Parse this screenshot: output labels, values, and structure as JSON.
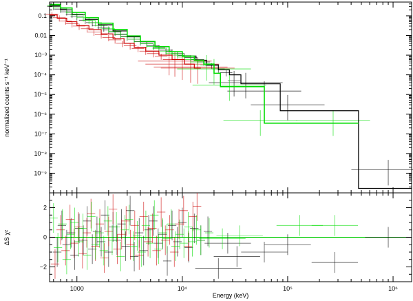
{
  "chart_data": [
    {
      "type": "line",
      "panel": "spectrum",
      "xlabel": "Energy (keV)",
      "ylabel": "normalized counts s⁻¹ keV⁻¹",
      "xscale": "log",
      "yscale": "log",
      "xlim": [
        550,
        1500000
      ],
      "ylim": [
        1e-10,
        0.5
      ],
      "grid": false,
      "xticks": [
        {
          "value": 1000,
          "label": "1000"
        },
        {
          "value": 10000,
          "label": "10⁴"
        },
        {
          "value": 100000,
          "label": "10⁵"
        },
        {
          "value": 1000000,
          "label": "10⁶"
        }
      ],
      "yticks": [
        {
          "value": 0.1,
          "label": "0.1"
        },
        {
          "value": 0.01,
          "label": "0.01"
        },
        {
          "value": 0.001,
          "label": "10⁻³"
        },
        {
          "value": 0.0001,
          "label": "10⁻⁴"
        },
        {
          "value": 1e-05,
          "label": "10⁻⁵"
        },
        {
          "value": 1e-06,
          "label": "10⁻⁶"
        },
        {
          "value": 1e-07,
          "label": "10⁻⁷"
        },
        {
          "value": 1e-08,
          "label": "10⁻⁸"
        },
        {
          "value": 1e-09,
          "label": "10⁻⁹"
        }
      ],
      "series": [
        {
          "color": "#000000",
          "model_steps": [
            [
              550,
              0.32
            ],
            [
              700,
              0.2
            ],
            [
              900,
              0.12
            ],
            [
              1200,
              0.065
            ],
            [
              1600,
              0.035
            ],
            [
              2200,
              0.017
            ],
            [
              3000,
              0.0085
            ],
            [
              4000,
              0.0048
            ],
            [
              5500,
              0.0027
            ],
            [
              7500,
              0.0015
            ],
            [
              10000,
              0.0009
            ],
            [
              13500,
              0.00055
            ],
            [
              17000,
              0.00032
            ],
            [
              22000,
              0.00018
            ],
            [
              28000,
              0.0001
            ],
            [
              36000,
              3.5e-05
            ],
            [
              85000,
              1.5e-06
            ],
            [
              470000,
              1.7e-10
            ],
            [
              1500000,
              1.7e-10
            ]
          ],
          "points": [
            [
              600,
              0.3
            ],
            [
              700,
              0.22
            ],
            [
              800,
              0.16
            ],
            [
              900,
              0.12
            ],
            [
              1000,
              0.09
            ],
            [
              1200,
              0.06
            ],
            [
              1400,
              0.045
            ],
            [
              1600,
              0.032
            ],
            [
              1800,
              0.024
            ],
            [
              2000,
              0.019
            ],
            [
              2300,
              0.015
            ],
            [
              2600,
              0.011
            ],
            [
              3000,
              0.0085
            ],
            [
              3500,
              0.0065
            ],
            [
              4000,
              0.0048
            ],
            [
              4600,
              0.0038
            ],
            [
              5300,
              0.003
            ],
            [
              6000,
              0.0024
            ],
            [
              7000,
              0.0018
            ],
            [
              8000,
              0.0015
            ],
            [
              9000,
              0.0012
            ],
            [
              10500,
              0.00095
            ],
            [
              12000,
              0.00075
            ],
            [
              14000,
              0.0006
            ],
            [
              16000,
              0.00045
            ],
            [
              19000,
              0.0003
            ],
            [
              22000,
              0.0002
            ],
            [
              26000,
              0.00013
            ],
            [
              31000,
              5e-05
            ],
            [
              40000,
              4e-05
            ],
            [
              60000,
              1.5e-05
            ],
            [
              100000,
              3e-06
            ],
            [
              900000,
              1.5e-09
            ]
          ],
          "residuals": [
            [
              650,
              -1.0
            ],
            [
              720,
              0.8
            ],
            [
              800,
              -0.5
            ],
            [
              880,
              0.3
            ],
            [
              950,
              -1.2
            ],
            [
              1050,
              0.6
            ],
            [
              1150,
              -0.2
            ],
            [
              1250,
              1.1
            ],
            [
              1400,
              -0.8
            ],
            [
              1550,
              0.4
            ],
            [
              1700,
              -0.3
            ],
            [
              1850,
              1.5
            ],
            [
              2000,
              -1.0
            ],
            [
              2200,
              0.7
            ],
            [
              2400,
              -0.2
            ],
            [
              2650,
              0.9
            ],
            [
              2900,
              -0.6
            ],
            [
              3200,
              1.8
            ],
            [
              3500,
              -1.3
            ],
            [
              3900,
              0.3
            ],
            [
              4300,
              -0.9
            ],
            [
              4800,
              0.5
            ],
            [
              5300,
              1.1
            ],
            [
              5900,
              -0.4
            ],
            [
              6500,
              0.2
            ],
            [
              7200,
              -1.6
            ],
            [
              8000,
              0.8
            ],
            [
              9000,
              -0.3
            ],
            [
              10000,
              1.0
            ],
            [
              11500,
              -0.7
            ],
            [
              13000,
              0.6
            ],
            [
              15000,
              -0.2
            ],
            [
              17500,
              0.4
            ],
            [
              22000,
              -2.1
            ],
            [
              27000,
              -0.4
            ],
            [
              33000,
              -1.3
            ],
            [
              60000,
              -1.0
            ],
            [
              100000,
              -0.5
            ],
            [
              280000,
              -1.7
            ],
            [
              900000,
              0.0
            ]
          ]
        },
        {
          "color": "#cc0000",
          "model_steps": [
            [
              550,
              0.11
            ],
            [
              650,
              0.075
            ],
            [
              800,
              0.05
            ],
            [
              1000,
              0.032
            ],
            [
              1300,
              0.02
            ],
            [
              1700,
              0.012
            ],
            [
              2200,
              0.007
            ],
            [
              2800,
              0.004
            ],
            [
              3500,
              0.0025
            ],
            [
              4500,
              0.0016
            ],
            [
              6000,
              0.001
            ],
            [
              8000,
              0.0006
            ],
            [
              10500,
              0.00035
            ],
            [
              13000,
              0.00022
            ],
            [
              15000,
              0.00022
            ]
          ],
          "points": [
            [
              580,
              0.12
            ],
            [
              680,
              0.08
            ],
            [
              780,
              0.055
            ],
            [
              900,
              0.04
            ],
            [
              1050,
              0.03
            ],
            [
              1250,
              0.022
            ],
            [
              1450,
              0.015
            ],
            [
              1700,
              0.011
            ],
            [
              2000,
              0.008
            ],
            [
              2300,
              0.006
            ],
            [
              2700,
              0.004
            ],
            [
              3200,
              0.003
            ],
            [
              3800,
              0.0022
            ],
            [
              4500,
              0.0016
            ],
            [
              5300,
              0.0012
            ],
            [
              6300,
              0.0009
            ],
            [
              7500,
              0.0006
            ],
            [
              8500,
              0.0005
            ],
            [
              10000,
              0.00035
            ],
            [
              12000,
              0.00025
            ],
            [
              14000,
              0.00022
            ]
          ],
          "residuals": [
            [
              620,
              -1.8
            ],
            [
              700,
              0.5
            ],
            [
              780,
              -0.9
            ],
            [
              860,
              1.2
            ],
            [
              940,
              -0.4
            ],
            [
              1030,
              0.7
            ],
            [
              1130,
              -1.1
            ],
            [
              1240,
              0.3
            ],
            [
              1360,
              1.6
            ],
            [
              1500,
              -0.6
            ],
            [
              1650,
              0.9
            ],
            [
              1820,
              -1.4
            ],
            [
              2000,
              0.4
            ],
            [
              2200,
              1.9
            ],
            [
              2420,
              -0.8
            ],
            [
              2660,
              0.2
            ],
            [
              2930,
              1.1
            ],
            [
              3220,
              -0.5
            ],
            [
              3540,
              0.8
            ],
            [
              3900,
              -1.2
            ],
            [
              4300,
              1.4
            ],
            [
              4730,
              -0.3
            ],
            [
              5200,
              0.6
            ],
            [
              5700,
              -0.9
            ],
            [
              6300,
              1.7
            ],
            [
              6900,
              -0.2
            ],
            [
              7600,
              0.5
            ],
            [
              8400,
              -1.0
            ],
            [
              9300,
              0.9
            ],
            [
              10300,
              1.8
            ],
            [
              11400,
              -0.6
            ],
            [
              12600,
              1.4
            ],
            [
              13800,
              2.1
            ]
          ]
        },
        {
          "color": "#00dd00",
          "model_steps": [
            [
              550,
              0.38
            ],
            [
              700,
              0.25
            ],
            [
              900,
              0.15
            ],
            [
              1200,
              0.08
            ],
            [
              1600,
              0.042
            ],
            [
              2200,
              0.02
            ],
            [
              3000,
              0.0095
            ],
            [
              4000,
              0.005
            ],
            [
              5500,
              0.0027
            ],
            [
              7500,
              0.0015
            ],
            [
              10000,
              0.0009
            ],
            [
              13000,
              0.00055
            ],
            [
              16000,
              0.00035
            ],
            [
              20000,
              0.00012
            ],
            [
              23000,
              2.5e-05
            ],
            [
              60000,
              3.5e-07
            ],
            [
              470000,
              3.5e-07
            ]
          ],
          "points": [
            [
              600,
              0.35
            ],
            [
              700,
              0.26
            ],
            [
              800,
              0.2
            ],
            [
              900,
              0.15
            ],
            [
              1000,
              0.11
            ],
            [
              1150,
              0.08
            ],
            [
              1300,
              0.06
            ],
            [
              1500,
              0.045
            ],
            [
              1700,
              0.032
            ],
            [
              2000,
              0.022
            ],
            [
              2300,
              0.016
            ],
            [
              2600,
              0.012
            ],
            [
              3000,
              0.009
            ],
            [
              3500,
              0.0065
            ],
            [
              4000,
              0.005
            ],
            [
              4600,
              0.0038
            ],
            [
              5300,
              0.0028
            ],
            [
              6000,
              0.0022
            ],
            [
              7000,
              0.0016
            ],
            [
              8000,
              0.0012
            ],
            [
              9000,
              0.001
            ],
            [
              10500,
              0.0008
            ],
            [
              12000,
              0.0006
            ],
            [
              14000,
              0.00045
            ],
            [
              17000,
              0.00032
            ],
            [
              20000,
              0.0002
            ],
            [
              28000,
              3e-05
            ],
            [
              55000,
              5e-07
            ],
            [
              270000,
              5e-07
            ]
          ],
          "residuals": [
            [
              600,
              1.3
            ],
            [
              660,
              -0.7
            ],
            [
              730,
              0.9
            ],
            [
              800,
              -1.5
            ],
            [
              870,
              0.2
            ],
            [
              950,
              1.0
            ],
            [
              1040,
              -0.3
            ],
            [
              1140,
              0.6
            ],
            [
              1250,
              -1.2
            ],
            [
              1370,
              1.4
            ],
            [
              1500,
              -0.5
            ],
            [
              1640,
              0.3
            ],
            [
              1800,
              -0.9
            ],
            [
              1970,
              1.1
            ],
            [
              2160,
              -0.2
            ],
            [
              2370,
              0.7
            ],
            [
              2600,
              -1.3
            ],
            [
              2850,
              0.5
            ],
            [
              3120,
              1.2
            ],
            [
              3420,
              -0.6
            ],
            [
              3750,
              0.1
            ],
            [
              4110,
              -1.0
            ],
            [
              4510,
              0.8
            ],
            [
              4950,
              -0.4
            ],
            [
              5430,
              1.5
            ],
            [
              5950,
              -0.8
            ],
            [
              6530,
              0.3
            ],
            [
              7160,
              -0.1
            ],
            [
              7850,
              0.9
            ],
            [
              8610,
              -0.6
            ],
            [
              9450,
              0.2
            ],
            [
              10360,
              -0.4
            ],
            [
              11370,
              0.7
            ],
            [
              12470,
              -0.3
            ],
            [
              13680,
              0.5
            ],
            [
              15000,
              -0.2
            ],
            [
              18000,
              0.3
            ],
            [
              24000,
              -0.1
            ],
            [
              35000,
              0.1
            ],
            [
              130000,
              0.8
            ],
            [
              280000,
              0.8
            ]
          ]
        }
      ]
    },
    {
      "type": "scatter",
      "panel": "residuals",
      "ylabel": "ΔS χ²",
      "xscale": "log",
      "xlim": [
        550,
        1500000
      ],
      "ylim": [
        -3,
        3
      ],
      "yticks": [
        {
          "value": 2,
          "label": "2"
        },
        {
          "value": 0,
          "label": "0"
        },
        {
          "value": -2,
          "label": "−2"
        }
      ],
      "zero_line_color": "#00cc00"
    }
  ]
}
